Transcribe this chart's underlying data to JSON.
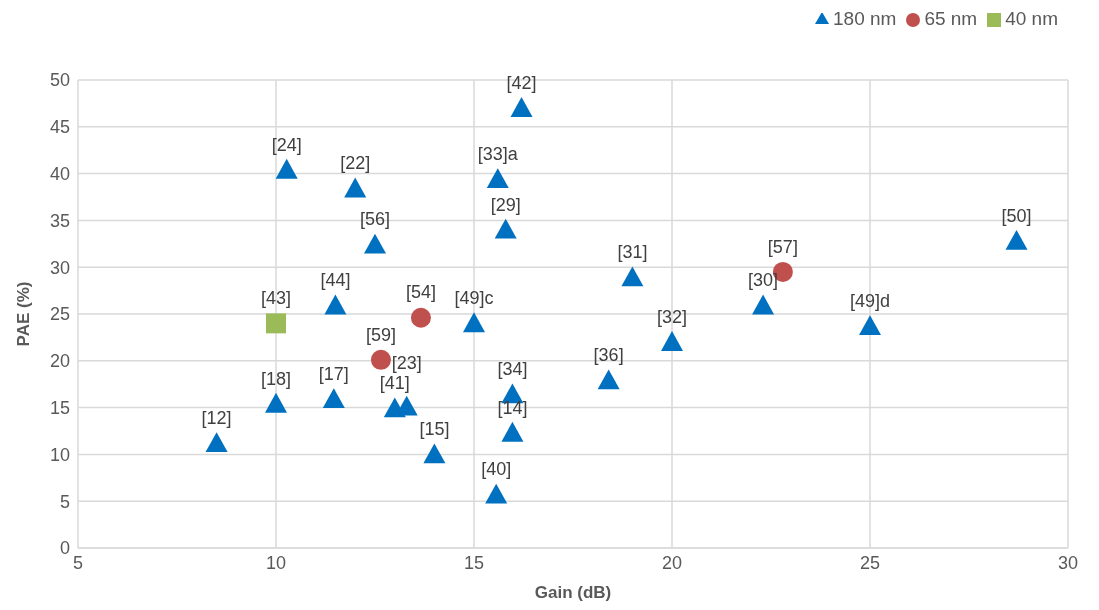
{
  "chart_data": {
    "type": "scatter",
    "xlabel": "Gain (dB)",
    "ylabel": "PAE (%)",
    "xlim": [
      5,
      30
    ],
    "xticks": [
      5,
      10,
      15,
      20,
      25,
      30
    ],
    "ylim": [
      0,
      50
    ],
    "yticks": [
      0,
      5,
      10,
      15,
      20,
      25,
      30,
      35,
      40,
      45,
      50
    ],
    "grid": true,
    "legend": "top right",
    "series": [
      {
        "name": "180 nm",
        "color": "#0070c0",
        "marker": "triangle",
        "x": [
          8.5,
          10.0,
          10.27,
          11.46,
          11.5,
          12.0,
          12.5,
          13.0,
          13.3,
          14.0,
          15.0,
          15.56,
          15.6,
          15.8,
          15.97,
          15.97,
          16.2,
          18.4,
          19.0,
          20.0,
          22.3,
          25.0,
          28.7
        ],
        "values": [
          11.2,
          15.4,
          40.4,
          15.9,
          25.9,
          38.4,
          32.4,
          14.9,
          15.1,
          10.0,
          24.0,
          5.7,
          39.4,
          34.0,
          16.4,
          12.3,
          47.0,
          17.9,
          28.9,
          22.0,
          25.9,
          23.7,
          32.8
        ]
      },
      {
        "name": "65 nm",
        "color": "#c0504d",
        "marker": "circle",
        "x": [
          12.65,
          13.66,
          22.8
        ],
        "values": [
          20.1,
          24.6,
          29.5
        ]
      },
      {
        "name": "40 nm",
        "color": "#9bbb59",
        "marker": "square",
        "x": [
          10.0
        ],
        "values": [
          24.0
        ]
      }
    ],
    "annotations": [
      {
        "text": "[12]",
        "x": 8.5,
        "y": 11.2
      },
      {
        "text": "[18]",
        "x": 10.0,
        "y": 15.4
      },
      {
        "text": "[24]",
        "x": 10.27,
        "y": 40.4
      },
      {
        "text": "[17]",
        "x": 11.46,
        "y": 15.9
      },
      {
        "text": "[44]",
        "x": 11.5,
        "y": 25.9
      },
      {
        "text": "[22]",
        "x": 12.0,
        "y": 38.4
      },
      {
        "text": "[56]",
        "x": 12.5,
        "y": 32.4
      },
      {
        "text": "[41]",
        "x": 13.0,
        "y": 14.9
      },
      {
        "text": "[23]",
        "x": 13.3,
        "y": 15.1
      },
      {
        "text": "[15]",
        "x": 14.0,
        "y": 10.0
      },
      {
        "text": "[49]c",
        "x": 15.0,
        "y": 24.0
      },
      {
        "text": "[40]",
        "x": 15.56,
        "y": 5.7
      },
      {
        "text": "[33]a",
        "x": 15.6,
        "y": 39.4
      },
      {
        "text": "[29]",
        "x": 15.8,
        "y": 34.0
      },
      {
        "text": "[34]",
        "x": 15.97,
        "y": 16.4
      },
      {
        "text": "[14]",
        "x": 15.97,
        "y": 12.3
      },
      {
        "text": "[42]",
        "x": 16.2,
        "y": 47.0
      },
      {
        "text": "[36]",
        "x": 18.4,
        "y": 17.9
      },
      {
        "text": "[31]",
        "x": 19.0,
        "y": 28.9
      },
      {
        "text": "[32]",
        "x": 20.0,
        "y": 22.0
      },
      {
        "text": "[30]",
        "x": 22.3,
        "y": 25.9
      },
      {
        "text": "[49]d",
        "x": 25.0,
        "y": 23.7
      },
      {
        "text": "[50]",
        "x": 28.7,
        "y": 32.8
      },
      {
        "text": "[59]",
        "x": 12.65,
        "y": 20.1
      },
      {
        "text": "[54]",
        "x": 13.66,
        "y": 24.6
      },
      {
        "text": "[57]",
        "x": 22.8,
        "y": 29.5
      },
      {
        "text": "[43]",
        "x": 10.0,
        "y": 24.0
      }
    ]
  }
}
